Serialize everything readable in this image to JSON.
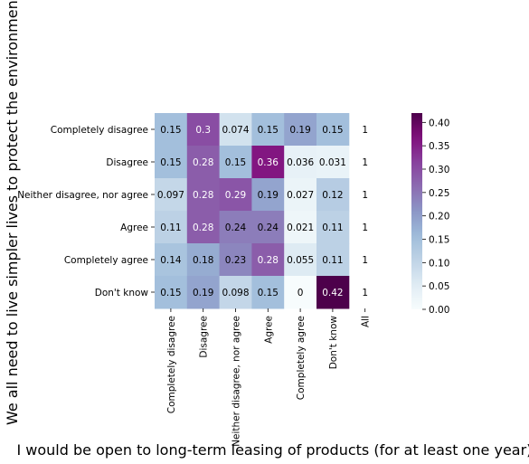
{
  "chart_data": {
    "type": "heatmap",
    "title": "",
    "xlabel": "I would be open to long-term leasing of products (for at least one year).",
    "ylabel": "We all need to live simpler lives to protect the environment",
    "x_categories": [
      "Completely disagree",
      "Disagree",
      "Neither disagree, nor agree",
      "Agree",
      "Completely agree",
      "Don't know",
      "All"
    ],
    "y_categories": [
      "Completely disagree",
      "Disagree",
      "Neither disagree, nor agree",
      "Agree",
      "Completely agree",
      "Don't know"
    ],
    "values": [
      [
        0.15,
        0.3,
        0.074,
        0.15,
        0.19,
        0.15,
        1
      ],
      [
        0.15,
        0.28,
        0.15,
        0.36,
        0.036,
        0.031,
        1
      ],
      [
        0.097,
        0.28,
        0.29,
        0.19,
        0.027,
        0.12,
        1
      ],
      [
        0.11,
        0.28,
        0.24,
        0.24,
        0.021,
        0.11,
        1
      ],
      [
        0.14,
        0.18,
        0.23,
        0.28,
        0.055,
        0.11,
        1
      ],
      [
        0.15,
        0.19,
        0.098,
        0.15,
        0,
        0.42,
        1
      ]
    ],
    "labels": [
      [
        "0.15",
        "0.3",
        "0.074",
        "0.15",
        "0.19",
        "0.15",
        "1"
      ],
      [
        "0.15",
        "0.28",
        "0.15",
        "0.36",
        "0.036",
        "0.031",
        "1"
      ],
      [
        "0.097",
        "0.28",
        "0.29",
        "0.19",
        "0.027",
        "0.12",
        "1"
      ],
      [
        "0.11",
        "0.28",
        "0.24",
        "0.24",
        "0.021",
        "0.11",
        "1"
      ],
      [
        "0.14",
        "0.18",
        "0.23",
        "0.28",
        "0.055",
        "0.11",
        "1"
      ],
      [
        "0.15",
        "0.19",
        "0.098",
        "0.15",
        "0",
        "0.42",
        "1"
      ]
    ],
    "colormap": "BuPu",
    "color_range": [
      0,
      0.42
    ],
    "colorbar_ticks": [
      "0.00",
      "0.05",
      "0.10",
      "0.15",
      "0.20",
      "0.25",
      "0.30",
      "0.35",
      "0.40"
    ],
    "uncolored_column": "All"
  }
}
